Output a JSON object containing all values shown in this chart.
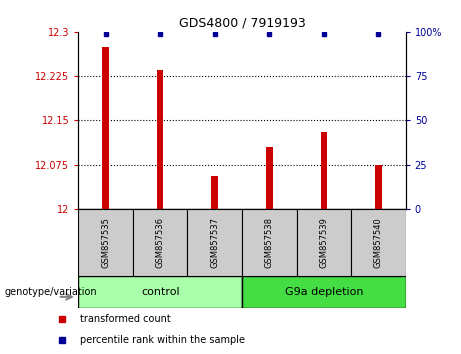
{
  "title": "GDS4800 / 7919193",
  "samples": [
    "GSM857535",
    "GSM857536",
    "GSM857537",
    "GSM857538",
    "GSM857539",
    "GSM857540"
  ],
  "transformed_counts": [
    12.275,
    12.235,
    12.055,
    12.105,
    12.13,
    12.075
  ],
  "percentile_ranks": [
    99,
    99,
    99,
    99,
    99,
    99
  ],
  "ylim_left": [
    12.0,
    12.3
  ],
  "ylim_right": [
    0,
    100
  ],
  "yticks_left": [
    12.0,
    12.075,
    12.15,
    12.225,
    12.3
  ],
  "ytick_labels_left": [
    "12",
    "12.075",
    "12.15",
    "12.225",
    "12.3"
  ],
  "yticks_right": [
    0,
    25,
    50,
    75,
    100
  ],
  "ytick_labels_right": [
    "0",
    "25",
    "50",
    "75",
    "100%"
  ],
  "bar_color": "#cc0000",
  "dot_color": "#000099",
  "control_samples": [
    0,
    1,
    2
  ],
  "depletion_samples": [
    3,
    4,
    5
  ],
  "control_label": "control",
  "depletion_label": "G9a depletion",
  "control_color": "#aaffaa",
  "depletion_color": "#44dd44",
  "sample_bg_color": "#cccccc",
  "legend_bar_label": "transformed count",
  "legend_dot_label": "percentile rank within the sample",
  "xlabel_group": "genotype/variation"
}
